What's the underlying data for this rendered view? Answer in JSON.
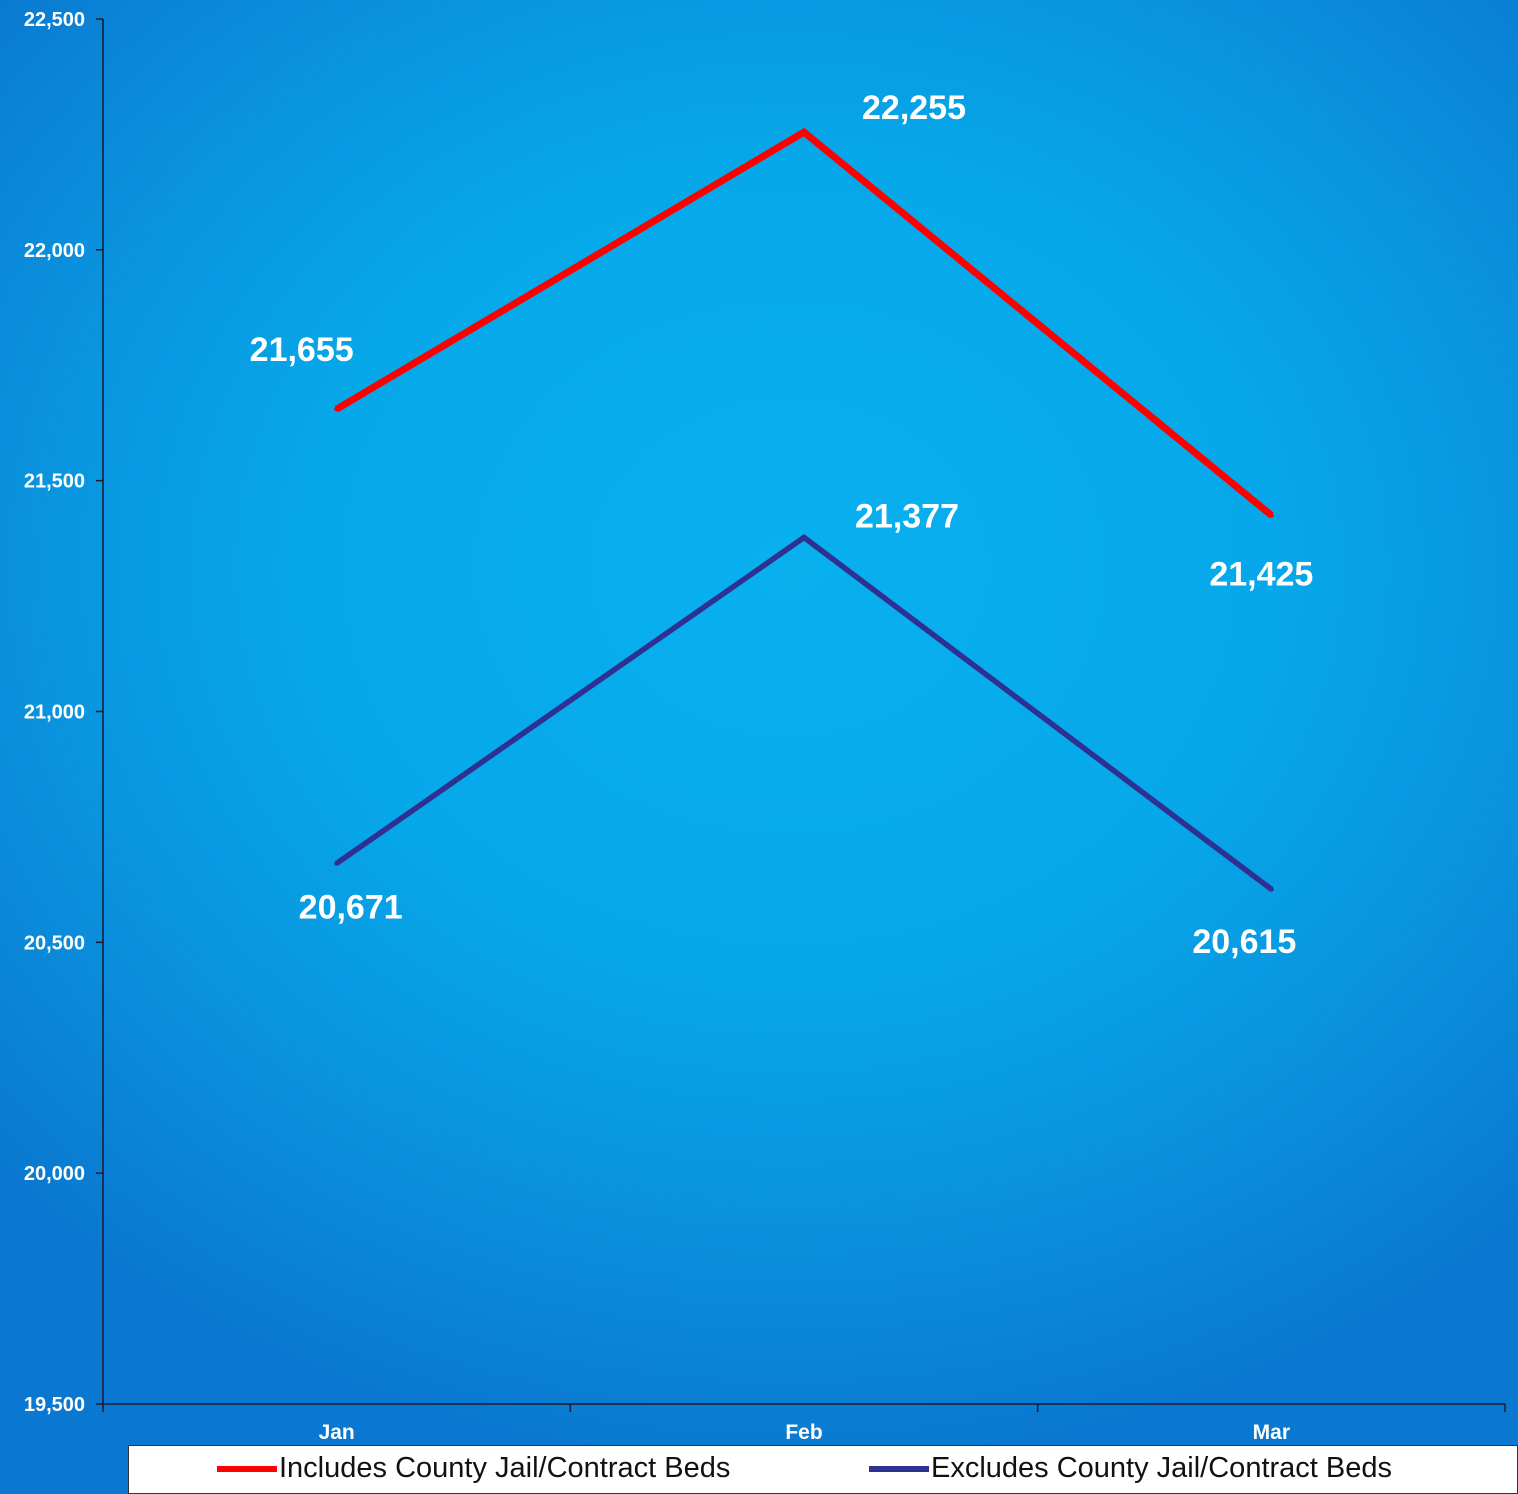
{
  "chart_data": {
    "type": "line",
    "categories": [
      "Jan",
      "Feb",
      "Mar"
    ],
    "series": [
      {
        "name": "Includes County Jail/Contract Beds",
        "values": [
          21655,
          22255,
          21425
        ],
        "color": "#ff0000",
        "labels": [
          "21,655",
          "22,255",
          "21,425"
        ]
      },
      {
        "name": "Excludes County Jail/Contract Beds",
        "values": [
          20671,
          21377,
          20615
        ],
        "color": "#2e3192",
        "labels": [
          "20,671",
          "21,377",
          "20,615"
        ]
      }
    ],
    "ylim": [
      19500,
      22500
    ],
    "yticks": [
      19500,
      20000,
      20500,
      21000,
      21500,
      22000,
      22500
    ],
    "ytick_labels": [
      "19,500",
      "20,000",
      "20,500",
      "21,000",
      "21,500",
      "22,000",
      "22,500"
    ],
    "grid": false,
    "legend_position": "bottom"
  }
}
